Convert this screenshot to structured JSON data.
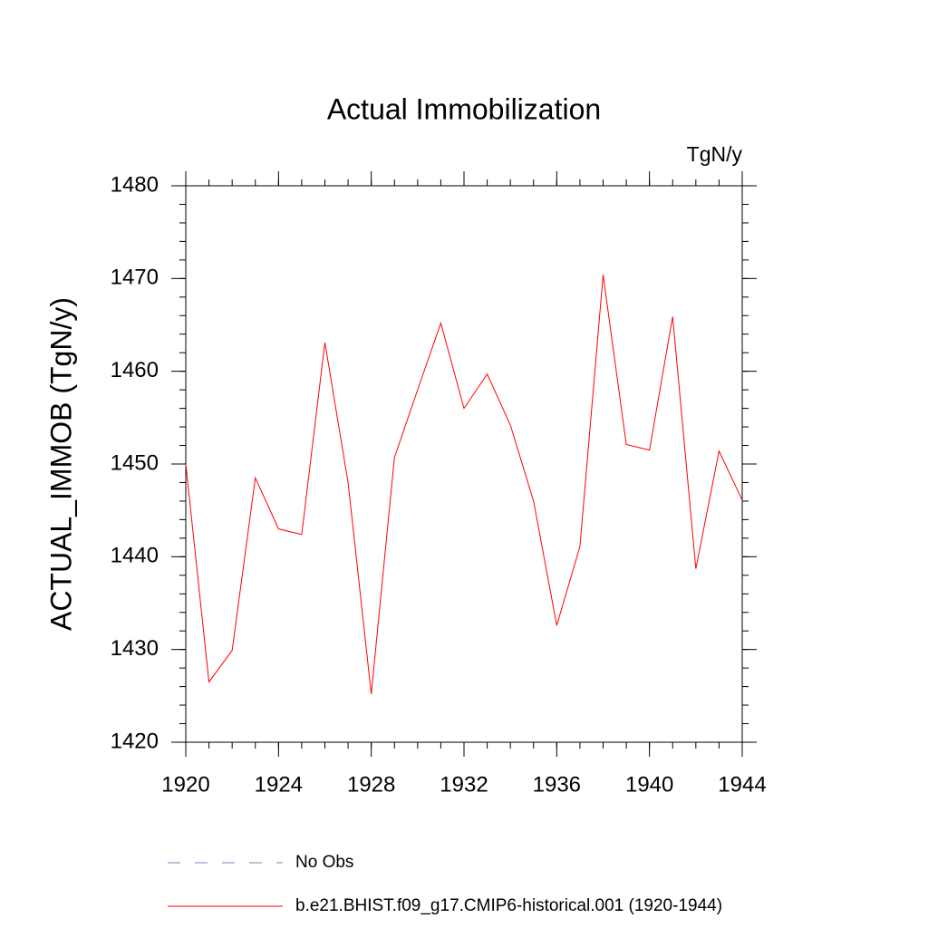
{
  "chart_data": {
    "type": "line",
    "title": "Actual Immobilization",
    "units": "TgN/y",
    "y_label": "ACTUAL_IMMOB  (TgN/y)",
    "x": [
      1920,
      1921,
      1922,
      1923,
      1924,
      1925,
      1926,
      1927,
      1928,
      1929,
      1930,
      1931,
      1932,
      1933,
      1934,
      1935,
      1936,
      1937,
      1938,
      1939,
      1940,
      1941,
      1942,
      1943,
      1944
    ],
    "series": [
      {
        "name": "b.e21.BHIST.f09_g17.CMIP6-historical.001 (1920-1944)",
        "color": "#ff0000",
        "values": [
          1450.0,
          1426.5,
          1429.9,
          1448.5,
          1443.0,
          1442.4,
          1463.1,
          1448.0,
          1425.2,
          1450.7,
          1458.0,
          1465.2,
          1456.0,
          1459.7,
          1454.2,
          1446.0,
          1432.6,
          1441.1,
          1470.4,
          1452.1,
          1451.5,
          1465.9,
          1438.7,
          1451.4,
          1446.1
        ]
      }
    ],
    "legend": [
      {
        "name": "No Obs",
        "color": "#7f7fbf",
        "dashed": true
      }
    ],
    "xlim": [
      1920,
      1944
    ],
    "xticks": [
      1920,
      1924,
      1928,
      1932,
      1936,
      1940,
      1944
    ],
    "xminor_step": 1,
    "ylim": [
      1420,
      1480
    ],
    "yticks": [
      1420,
      1430,
      1440,
      1450,
      1460,
      1470,
      1480
    ],
    "yminor_step": 2
  }
}
